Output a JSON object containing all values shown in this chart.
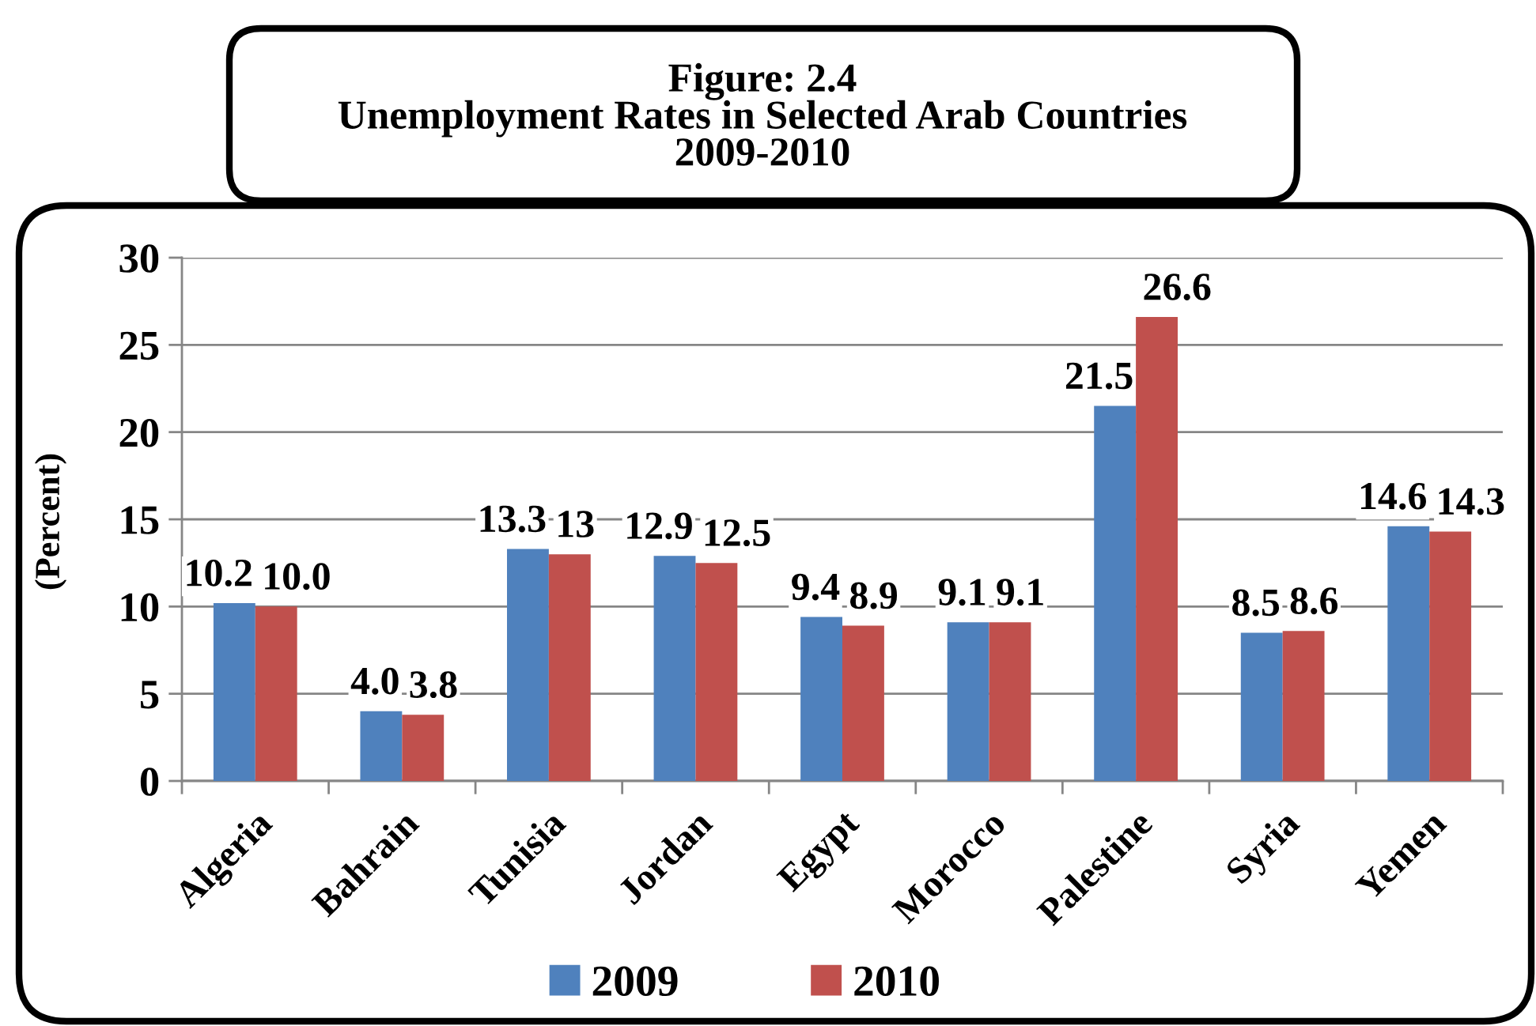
{
  "chart_data": {
    "type": "bar",
    "title": "Figure: 2.4\nUnemployment Rates in Selected Arab Countries\n2009-2010",
    "ylabel": "(Percent)",
    "categories": [
      "Algeria",
      "Bahrain",
      "Tunisia",
      "Jordan",
      "Egypt",
      "Morocco",
      "Palestine",
      "Syria",
      "Yemen"
    ],
    "series": [
      {
        "name": "2009",
        "color": "#4f81bd",
        "values": [
          10.2,
          4.0,
          13.3,
          12.9,
          9.4,
          9.1,
          21.5,
          8.5,
          14.6
        ],
        "value_labels": [
          "10.2",
          "4.0",
          "13.3",
          "12.9",
          "9.4",
          "9.1",
          "21.5",
          "8.5",
          "14.6"
        ]
      },
      {
        "name": "2010",
        "color": "#c0504d",
        "values": [
          10.0,
          3.8,
          13,
          12.5,
          8.9,
          9.1,
          26.6,
          8.6,
          14.3
        ],
        "value_labels": [
          "10.0",
          "3.8",
          "13",
          "12.5",
          "8.9",
          "9.1",
          "26.6",
          "8.6",
          "14.3"
        ]
      }
    ],
    "ylim": [
      0,
      30
    ],
    "yticks": [
      0,
      5,
      10,
      15,
      20,
      25,
      30
    ],
    "grid": "y",
    "legend": "bottom"
  }
}
